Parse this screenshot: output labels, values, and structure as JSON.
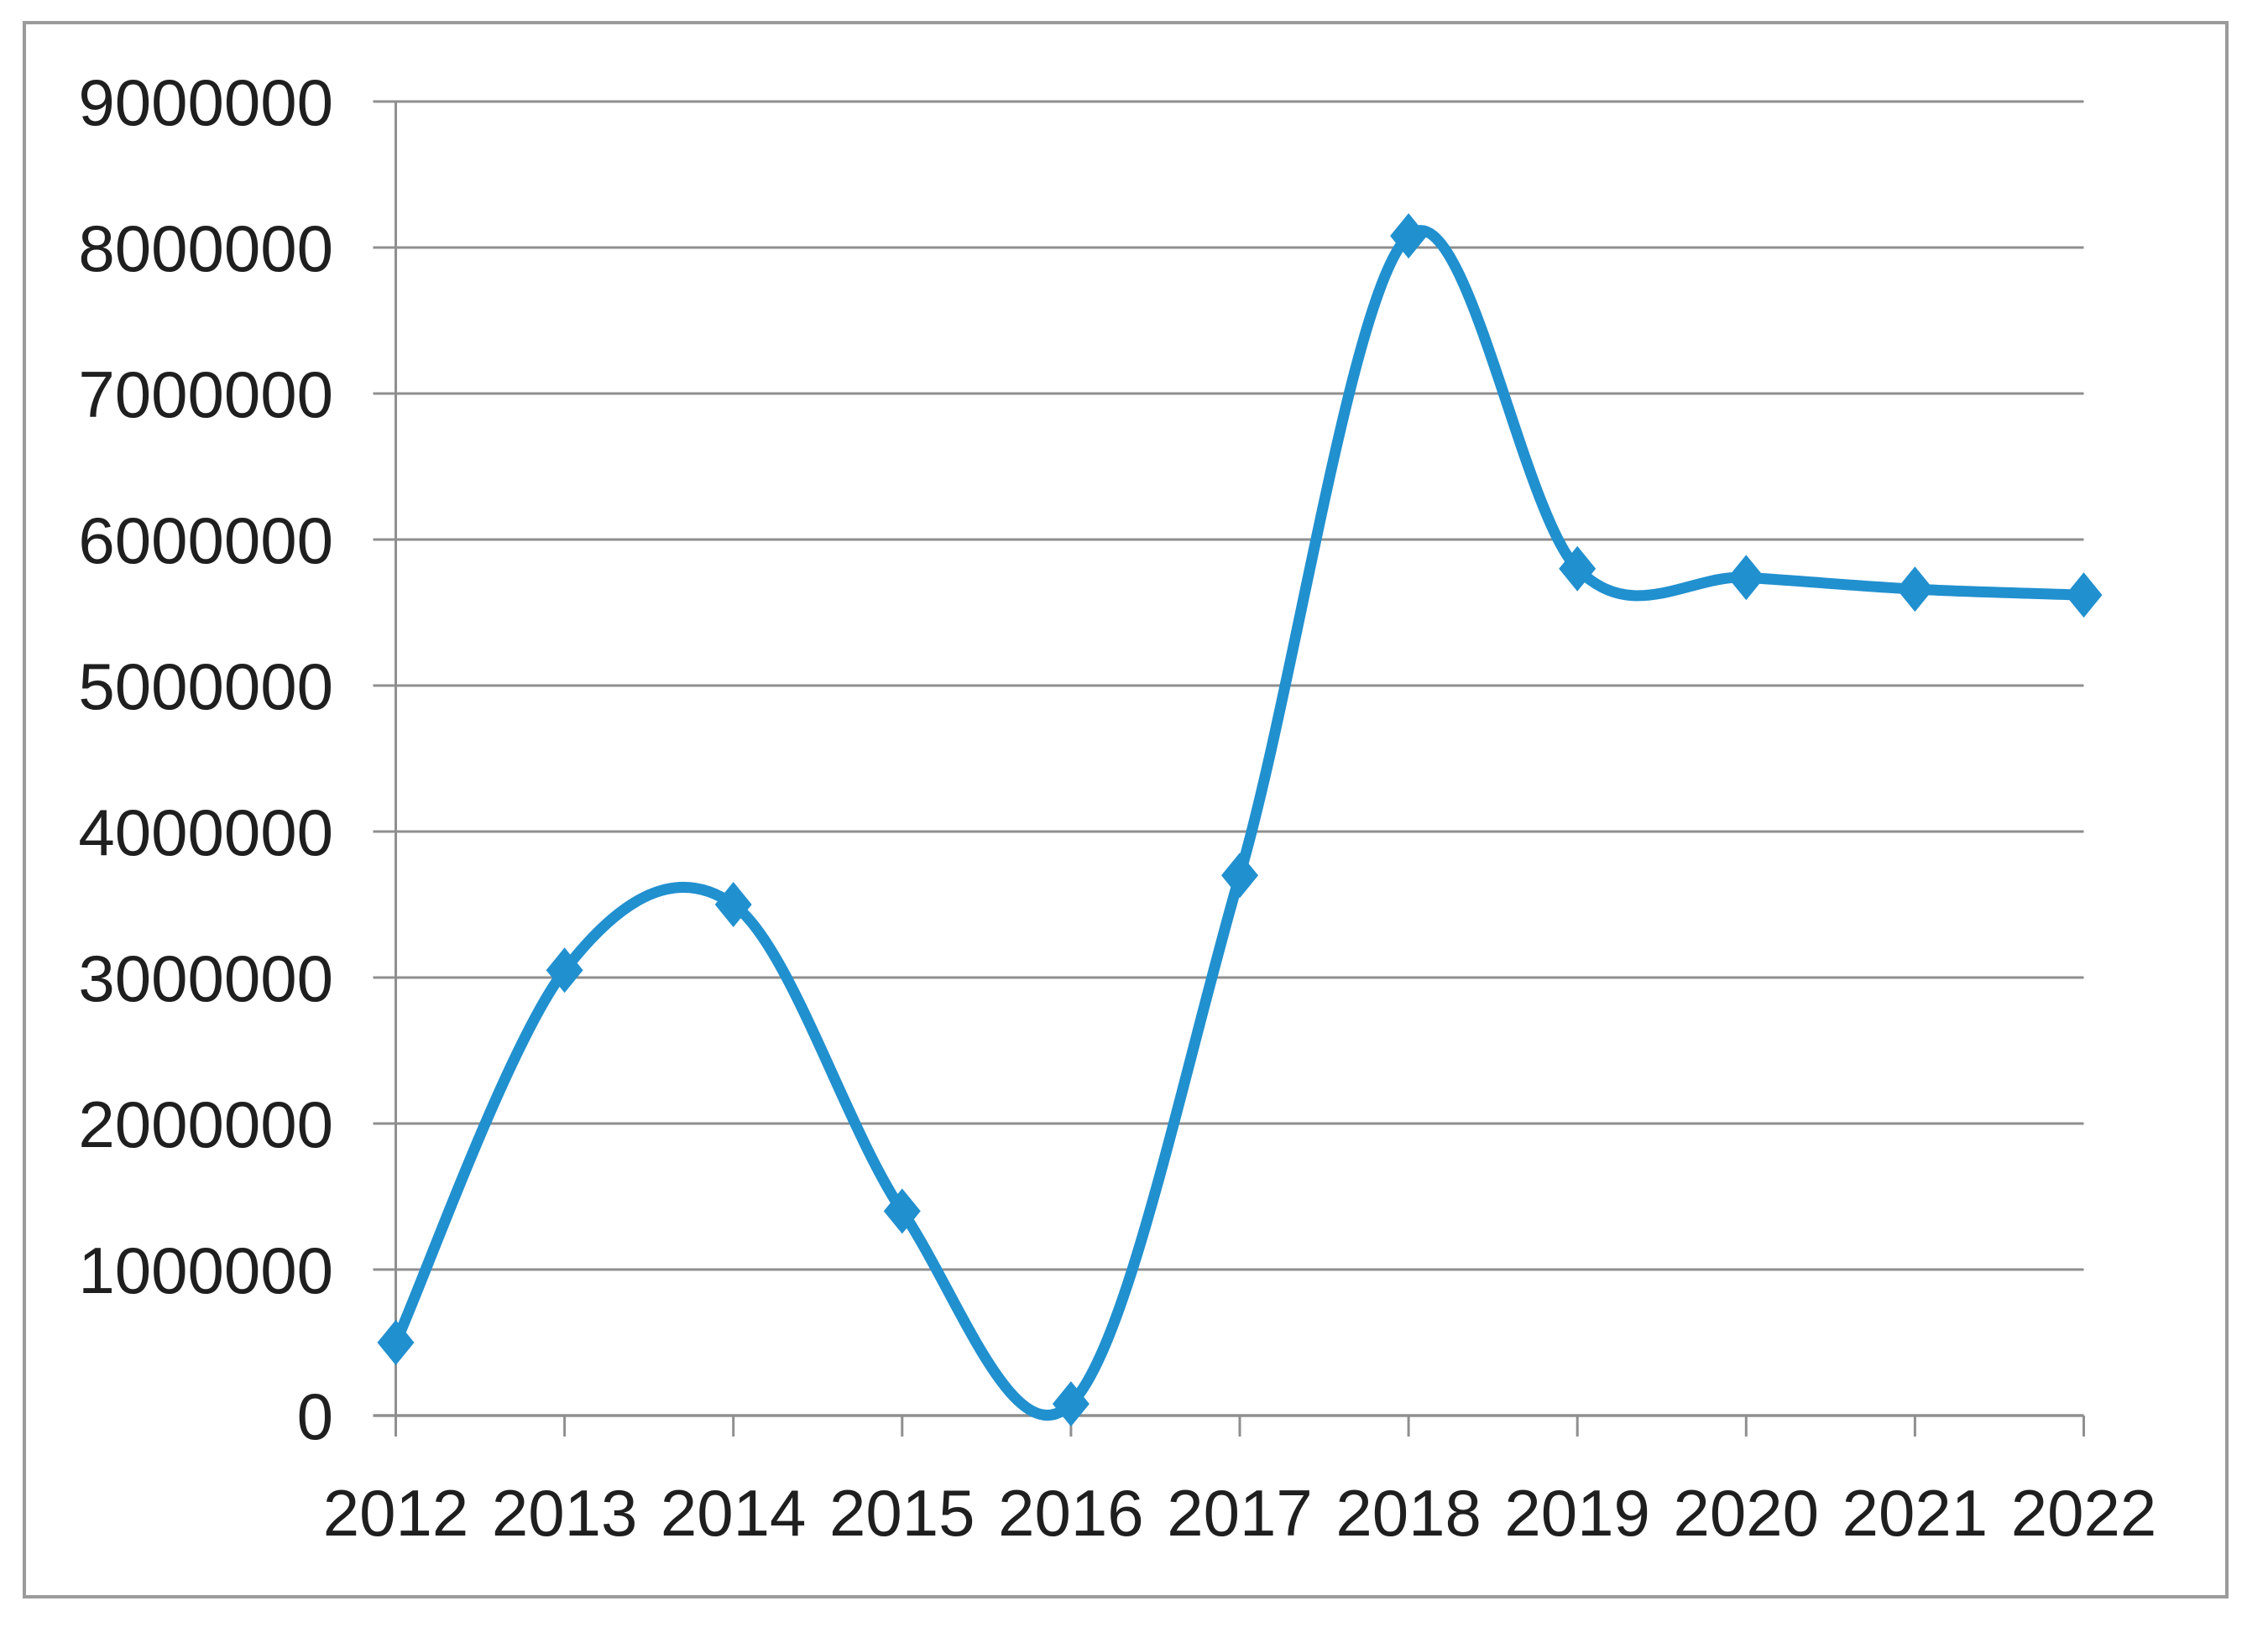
{
  "chart_data": {
    "type": "line",
    "title": "",
    "categories": [
      "2012",
      "2013",
      "2014",
      "2015",
      "2016",
      "2017",
      "2018",
      "2019",
      "2020",
      "2021",
      "2022"
    ],
    "series": [
      {
        "name": "",
        "values": [
          500000,
          3050000,
          3500000,
          1400000,
          80000,
          3700000,
          8080000,
          5800000,
          5740000,
          5660000,
          5620000
        ]
      }
    ],
    "xlabel": "",
    "ylabel": "",
    "ylim": [
      0,
      9000000
    ],
    "y_tick_interval": 1000000,
    "y_tick_labels": [
      "0",
      "1000000",
      "2000000",
      "3000000",
      "4000000",
      "5000000",
      "6000000",
      "7000000",
      "8000000",
      "9000000"
    ],
    "grid": "horizontal",
    "legend": "none",
    "line_style": "smooth",
    "marker_style": "diamond",
    "colors": {
      "line": "#2190cf",
      "gridline": "#8f8f8f",
      "axis": "#8f8f8f",
      "frame_border": "#9b9b9b",
      "label_text": "#1f1f1f",
      "background": "#ffffff"
    }
  }
}
